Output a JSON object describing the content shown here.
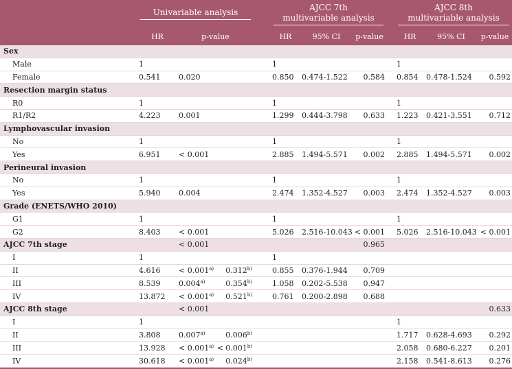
{
  "header": {
    "groups": {
      "univariable": "Univariable analysis",
      "ajcc7_line1": "AJCC 7th",
      "ajcc7_line2": "multivariable analysis",
      "ajcc8_line1": "AJCC 8th",
      "ajcc8_line2": "multivariable analysis"
    },
    "cols": {
      "u_hr": "HR",
      "u_p": "p-value",
      "a7_hr": "HR",
      "a7_ci": "95% CI",
      "a7_p": "p-value",
      "a8_hr": "HR",
      "a8_ci": "95% CI",
      "a8_p": "p-value"
    }
  },
  "rows": {
    "sex": {
      "label": "Sex"
    },
    "sex_male": {
      "label": "Male",
      "u_hr": "1",
      "a7_hr": "1",
      "a8_hr": "1"
    },
    "sex_female": {
      "label": "Female",
      "u_hr": "0.541",
      "u_p": "0.020",
      "a7_hr": "0.850",
      "a7_ci": "0.474-1.522",
      "a7_p": "0.584",
      "a8_hr": "0.854",
      "a8_ci": "0.478-1.524",
      "a8_p": "0.592"
    },
    "margin": {
      "label": "Resection margin status"
    },
    "margin_r0": {
      "label": "R0",
      "u_hr": "1",
      "a7_hr": "1",
      "a8_hr": "1"
    },
    "margin_r1r2": {
      "label": "R1/R2",
      "u_hr": "4.223",
      "u_p": "0.001",
      "a7_hr": "1.299",
      "a7_ci": "0.444-3.798",
      "a7_p": "0.633",
      "a8_hr": "1.223",
      "a8_ci": "0.421-3.551",
      "a8_p": "0.712"
    },
    "lvi": {
      "label": "Lymphovascular invasion"
    },
    "lvi_no": {
      "label": "No",
      "u_hr": "1",
      "a7_hr": "1",
      "a8_hr": "1"
    },
    "lvi_yes": {
      "label": "Yes",
      "u_hr": "6.951",
      "u_p": "< 0.001",
      "a7_hr": "2.885",
      "a7_ci": "1.494-5.571",
      "a7_p": "0.002",
      "a8_hr": "2.885",
      "a8_ci": "1.494-5.571",
      "a8_p": "0.002"
    },
    "pni": {
      "label": "Perineural invasion"
    },
    "pni_no": {
      "label": "No",
      "u_hr": "1",
      "a7_hr": "1",
      "a8_hr": "1"
    },
    "pni_yes": {
      "label": "Yes",
      "u_hr": "5.940",
      "u_p": "0.004",
      "a7_hr": "2.474",
      "a7_ci": "1.352-4.527",
      "a7_p": "0.003",
      "a8_hr": "2.474",
      "a8_ci": "1.352-4.527",
      "a8_p": "0.003"
    },
    "grade": {
      "label": "Grade (ENETS/WHO 2010)"
    },
    "grade_g1": {
      "label": "G1",
      "u_hr": "1",
      "a7_hr": "1",
      "a8_hr": "1"
    },
    "grade_g2": {
      "label": "G2",
      "u_hr": "8.403",
      "u_p": "< 0.001",
      "a7_hr": "5.026",
      "a7_ci": "2.516-10.043",
      "a7_p": "< 0.001",
      "a8_hr": "5.026",
      "a8_ci": "2.516-10.043",
      "a8_p": "< 0.001"
    },
    "ajcc7": {
      "label": "AJCC 7th stage",
      "u_p": "< 0.001",
      "a7_p": "0.965"
    },
    "ajcc7_i": {
      "label": "I",
      "u_hr": "1",
      "a7_hr": "1"
    },
    "ajcc7_ii": {
      "label": "II",
      "u_hr": "4.616",
      "u_pa": "< 0.001",
      "u_pb": "0.312",
      "a7_hr": "0.855",
      "a7_ci": "0.376-1.944",
      "a7_p": "0.709"
    },
    "ajcc7_iii": {
      "label": "III",
      "u_hr": "8.539",
      "u_pa": "0.004",
      "u_pb": "0.354",
      "a7_hr": "1.058",
      "a7_ci": "0.202-5.538",
      "a7_p": "0.947"
    },
    "ajcc7_iv": {
      "label": "IV",
      "u_hr": "13.872",
      "u_pa": "< 0.001",
      "u_pb": "0.521",
      "a7_hr": "0.761",
      "a7_ci": "0.200-2.898",
      "a7_p": "0.688"
    },
    "ajcc8": {
      "label": "AJCC 8th stage",
      "u_p": "< 0.001",
      "a8_p": "0.633"
    },
    "ajcc8_i": {
      "label": "I",
      "u_hr": "1",
      "a8_hr": "1"
    },
    "ajcc8_ii": {
      "label": "II",
      "u_hr": "3.808",
      "u_pa": "0.007",
      "u_pb": "0.006",
      "a8_hr": "1.717",
      "a8_ci": "0.628-4.693",
      "a8_p": "0.292"
    },
    "ajcc8_iii": {
      "label": "III",
      "u_hr": "13.928",
      "u_pa": "< 0.001",
      "u_pb": "< 0.001",
      "a8_hr": "2.058",
      "a8_ci": "0.680-6.227",
      "a8_p": "0.201"
    },
    "ajcc8_iv": {
      "label": "IV",
      "u_hr": "30.618",
      "u_pa": "< 0.001",
      "u_pb": "0.024",
      "a8_hr": "2.158",
      "a8_ci": "0.541-8.613",
      "a8_p": "0.276"
    }
  },
  "footnote_marks": {
    "a": "a)",
    "b": "b)"
  },
  "colors": {
    "header_bg": "#a8586e",
    "section_bg": "#ede0e4",
    "row_line": "#e9d5db"
  }
}
